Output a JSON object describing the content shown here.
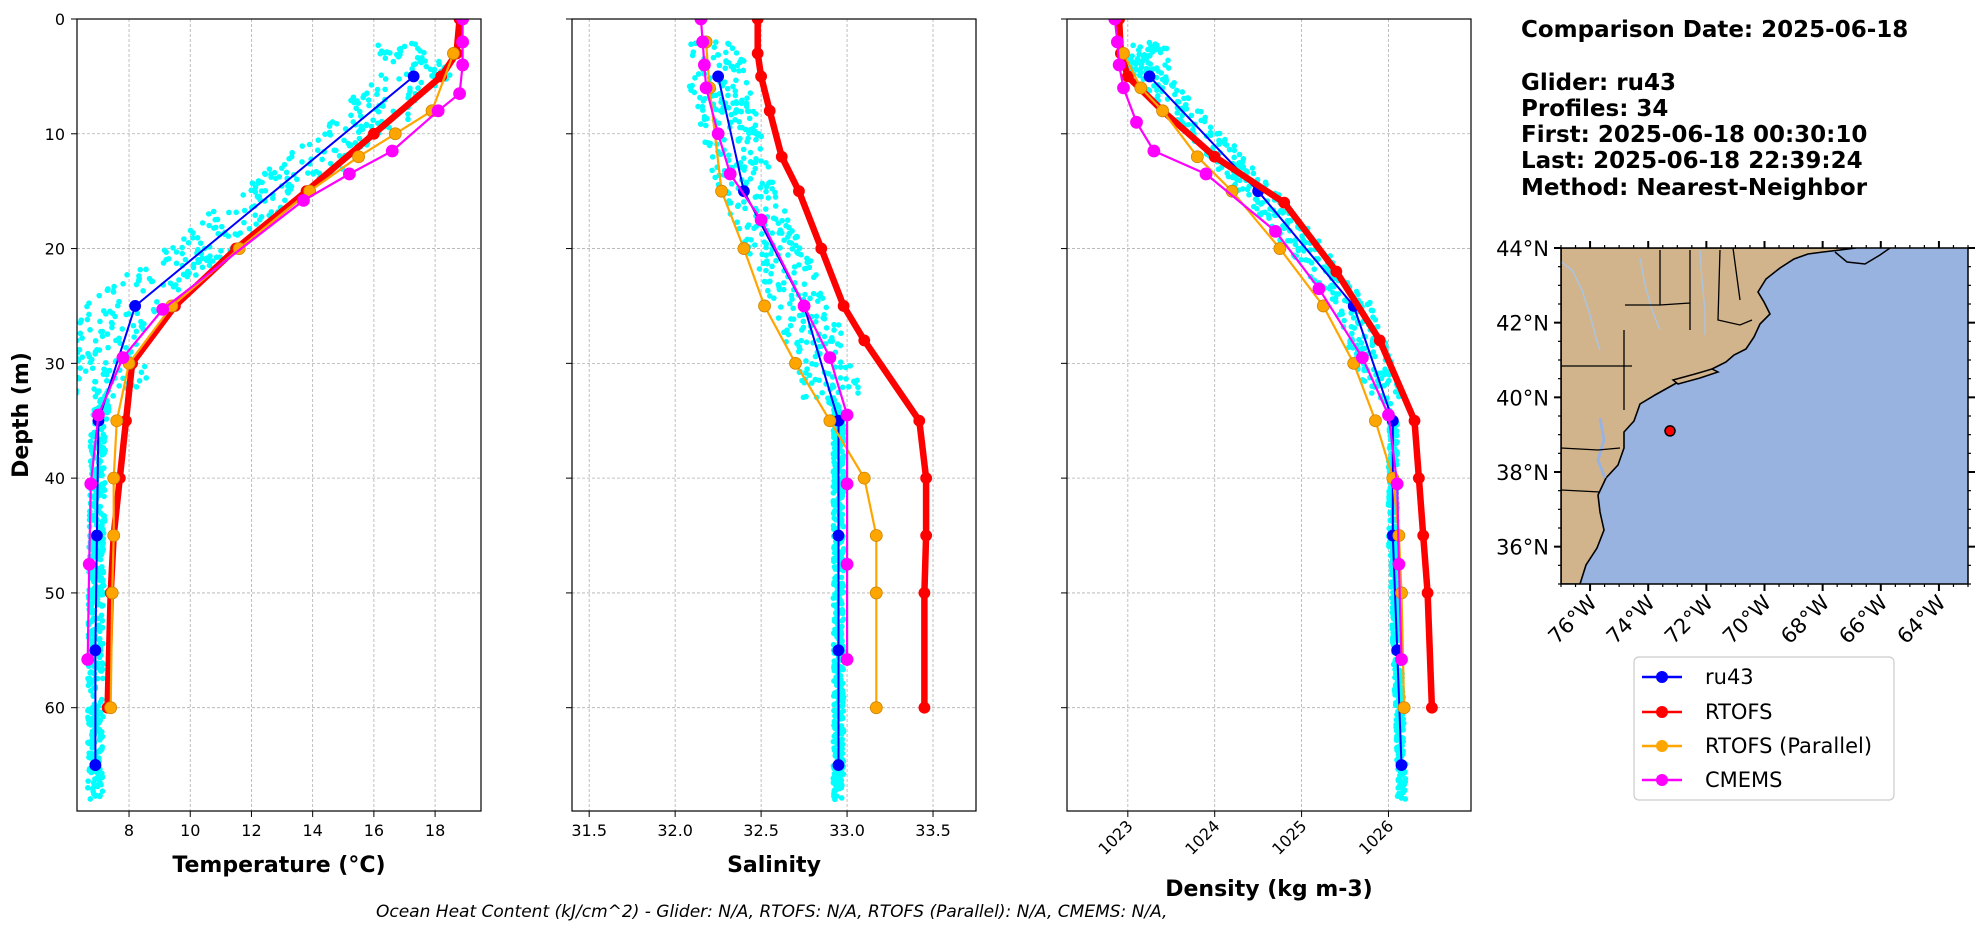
{
  "info": {
    "comparison_date": "Comparison Date: 2025-06-18",
    "glider": "Glider: ru43",
    "profiles": "Profiles: 34",
    "first": "First: 2025-06-18 00:30:10",
    "last": "Last: 2025-06-18 22:39:24",
    "method": "Method: Nearest-Neighbor"
  },
  "footer": "Ocean Heat Content (kJ/cm^2) - Glider: N/A,  RTOFS: N/A,  RTOFS (Parallel): N/A,  CMEMS: N/A,",
  "colors": {
    "glider": "#0000ff",
    "rtofs": "#ff0000",
    "rtofs_parallel": "#ffa500",
    "cmems": "#ff00ff",
    "scatter": "#00ffff",
    "land": "#d2b48c",
    "ocean": "#99b3e0"
  },
  "legend": [
    {
      "name": "ru43",
      "color": "#0000ff"
    },
    {
      "name": "RTOFS",
      "color": "#ff0000"
    },
    {
      "name": "RTOFS (Parallel)",
      "color": "#ffa500"
    },
    {
      "name": "CMEMS",
      "color": "#ff00ff"
    }
  ],
  "chart_data": [
    {
      "type": "line",
      "xlabel": "Temperature (°C)",
      "ylabel": "Depth (m)",
      "xlim": [
        6.3,
        19.5
      ],
      "ylim": [
        69,
        0
      ],
      "xticks": [
        8,
        10,
        12,
        14,
        16,
        18
      ],
      "yticks": [
        0,
        10,
        20,
        30,
        40,
        50,
        60
      ],
      "grid": true,
      "series": [
        {
          "name": "ru43",
          "x": [
            17.3,
            8.2,
            7.0,
            6.95,
            6.9,
            6.9,
            6.9
          ],
          "y": [
            5,
            25,
            35,
            45,
            55,
            65,
            65
          ]
        },
        {
          "name": "RTOFS",
          "x": [
            18.8,
            18.7,
            18.2,
            16.0,
            13.8,
            11.5,
            9.5,
            8.1,
            7.9,
            7.7,
            7.5,
            7.4,
            7.3
          ],
          "y": [
            0,
            3,
            5,
            10,
            15,
            20,
            25,
            30,
            35,
            40,
            45,
            50,
            60
          ]
        },
        {
          "name": "RTOFS (Parallel)",
          "x": [
            18.6,
            17.9,
            16.7,
            15.5,
            13.9,
            11.6,
            9.4,
            8.0,
            7.6,
            7.5,
            7.5,
            7.45,
            7.4
          ],
          "y": [
            3,
            8,
            10,
            12,
            15,
            20,
            25,
            30,
            35,
            40,
            45,
            50,
            60
          ]
        },
        {
          "name": "CMEMS",
          "x": [
            18.9,
            18.9,
            18.9,
            18.8,
            18.1,
            16.6,
            15.2,
            13.7,
            9.1,
            7.8,
            7.0,
            6.75,
            6.7,
            6.65
          ],
          "y": [
            0,
            2,
            4,
            6.5,
            8,
            11.5,
            13.5,
            15.8,
            25.3,
            29.5,
            34.5,
            40.5,
            47.5,
            55.8
          ]
        }
      ]
    },
    {
      "type": "line",
      "xlabel": "Salinity",
      "ylim": [
        69,
        0
      ],
      "xlim": [
        31.4,
        33.75
      ],
      "xticks": [
        31.5,
        32.0,
        32.5,
        33.0,
        33.5
      ],
      "grid": true,
      "series": [
        {
          "name": "ru43",
          "x": [
            32.25,
            32.4,
            32.75,
            32.95,
            32.95,
            32.95,
            32.95
          ],
          "y": [
            5,
            15,
            25,
            35,
            45,
            55,
            65
          ]
        },
        {
          "name": "RTOFS",
          "x": [
            32.48,
            32.48,
            32.5,
            32.55,
            32.62,
            32.72,
            32.85,
            32.98,
            33.1,
            33.42,
            33.46,
            33.46,
            33.45,
            33.45
          ],
          "y": [
            0,
            3,
            5,
            8,
            12,
            15,
            20,
            25,
            28,
            35,
            40,
            45,
            50,
            60
          ]
        },
        {
          "name": "RTOFS (Parallel)",
          "x": [
            32.18,
            32.2,
            32.27,
            32.4,
            32.52,
            32.7,
            32.9,
            33.1,
            33.17,
            33.17,
            33.17
          ],
          "y": [
            2,
            6,
            15,
            20,
            25,
            30,
            35,
            40,
            45,
            50,
            60
          ]
        },
        {
          "name": "CMEMS",
          "x": [
            32.15,
            32.16,
            32.17,
            32.18,
            32.25,
            32.32,
            32.5,
            32.75,
            32.9,
            33.0,
            33.0,
            33.0,
            33.0
          ],
          "y": [
            0,
            2,
            4,
            6,
            10,
            13.5,
            17.5,
            25,
            29.5,
            34.5,
            40.5,
            47.5,
            55.8
          ]
        }
      ]
    },
    {
      "type": "line",
      "xlabel": "Density (kg m-3)",
      "ylim": [
        69,
        0
      ],
      "xlim": [
        1022.3,
        1026.95
      ],
      "xticks": [
        1023,
        1024,
        1025,
        1026
      ],
      "grid": true,
      "series": [
        {
          "name": "ru43",
          "x": [
            1023.25,
            1024.5,
            1025.6,
            1026.05,
            1026.05,
            1026.1,
            1026.15
          ],
          "y": [
            5,
            15,
            25,
            35,
            45,
            55,
            65
          ]
        },
        {
          "name": "RTOFS",
          "x": [
            1022.9,
            1022.92,
            1023.0,
            1023.4,
            1024.0,
            1024.8,
            1025.4,
            1025.9,
            1026.3,
            1026.35,
            1026.4,
            1026.45,
            1026.5
          ],
          "y": [
            0,
            3,
            5,
            8,
            12,
            16,
            22,
            28,
            35,
            40,
            45,
            50,
            60
          ]
        },
        {
          "name": "RTOFS (Parallel)",
          "x": [
            1022.95,
            1023.15,
            1023.4,
            1023.8,
            1024.2,
            1024.75,
            1025.25,
            1025.6,
            1025.85,
            1026.05,
            1026.12,
            1026.15,
            1026.18
          ],
          "y": [
            3,
            6,
            8,
            12,
            15,
            20,
            25,
            30,
            35,
            40,
            45,
            50,
            60
          ]
        },
        {
          "name": "CMEMS",
          "x": [
            1022.85,
            1022.88,
            1022.9,
            1022.95,
            1023.1,
            1023.3,
            1023.9,
            1024.7,
            1025.2,
            1025.7,
            1026.0,
            1026.1,
            1026.12,
            1026.15
          ],
          "y": [
            0,
            2,
            4,
            6,
            9,
            11.5,
            13.5,
            18.5,
            23.5,
            29.5,
            34.5,
            40.5,
            47.5,
            55.8
          ]
        }
      ]
    }
  ],
  "map": {
    "lon_ticks": [
      "76°W",
      "74°W",
      "72°W",
      "70°W",
      "68°W",
      "66°W",
      "64°W"
    ],
    "lat_ticks": [
      "44°N",
      "42°N",
      "40°N",
      "38°N",
      "36°N"
    ],
    "lon_values": [
      -76,
      -74,
      -72,
      -70,
      -68,
      -66,
      -64
    ],
    "lat_values": [
      44,
      42,
      40,
      38,
      36
    ],
    "lon_range": [
      -77,
      -63
    ],
    "lat_range": [
      35,
      44
    ],
    "glider_position": {
      "lon": -73.25,
      "lat": 39.1
    }
  }
}
